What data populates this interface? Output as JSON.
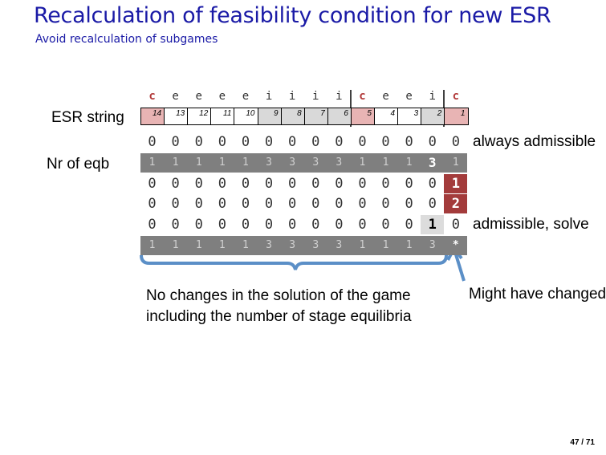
{
  "header": {
    "title": "Recalculation of feasibility condition for new ESR",
    "subtitle": "Avoid recalculation of subgames"
  },
  "esr": {
    "label": "ESR string",
    "letters": [
      "c",
      "e",
      "e",
      "e",
      "e",
      "i",
      "i",
      "i",
      "i",
      "c",
      "e",
      "e",
      "i",
      "c"
    ],
    "indices": [
      14,
      13,
      12,
      11,
      10,
      9,
      8,
      7,
      6,
      5,
      4,
      3,
      2,
      1
    ]
  },
  "eqb_label": "Nr of eqb",
  "rows": [
    {
      "values": [
        0,
        0,
        0,
        0,
        0,
        0,
        0,
        0,
        0,
        0,
        0,
        0,
        0,
        0
      ],
      "note": "always admissible"
    },
    {
      "values": [
        1,
        1,
        1,
        1,
        1,
        3,
        3,
        3,
        3,
        1,
        1,
        1,
        3,
        1
      ]
    },
    {
      "values": [
        0,
        0,
        0,
        0,
        0,
        0,
        0,
        0,
        0,
        0,
        0,
        0,
        0,
        1
      ]
    },
    {
      "values": [
        0,
        0,
        0,
        0,
        0,
        0,
        0,
        0,
        0,
        0,
        0,
        0,
        0,
        2
      ]
    },
    {
      "values": [
        0,
        0,
        0,
        0,
        0,
        0,
        0,
        0,
        0,
        0,
        0,
        0,
        1,
        0
      ],
      "note": "admissible, solve"
    },
    {
      "values": [
        1,
        1,
        1,
        1,
        1,
        3,
        3,
        3,
        3,
        1,
        1,
        1,
        3,
        "*"
      ]
    }
  ],
  "brace_caption": [
    "No changes in the solution of the game",
    "including the number of stage equilibria"
  ],
  "arrow_caption": "Might have changed",
  "footer": "47 / 71"
}
